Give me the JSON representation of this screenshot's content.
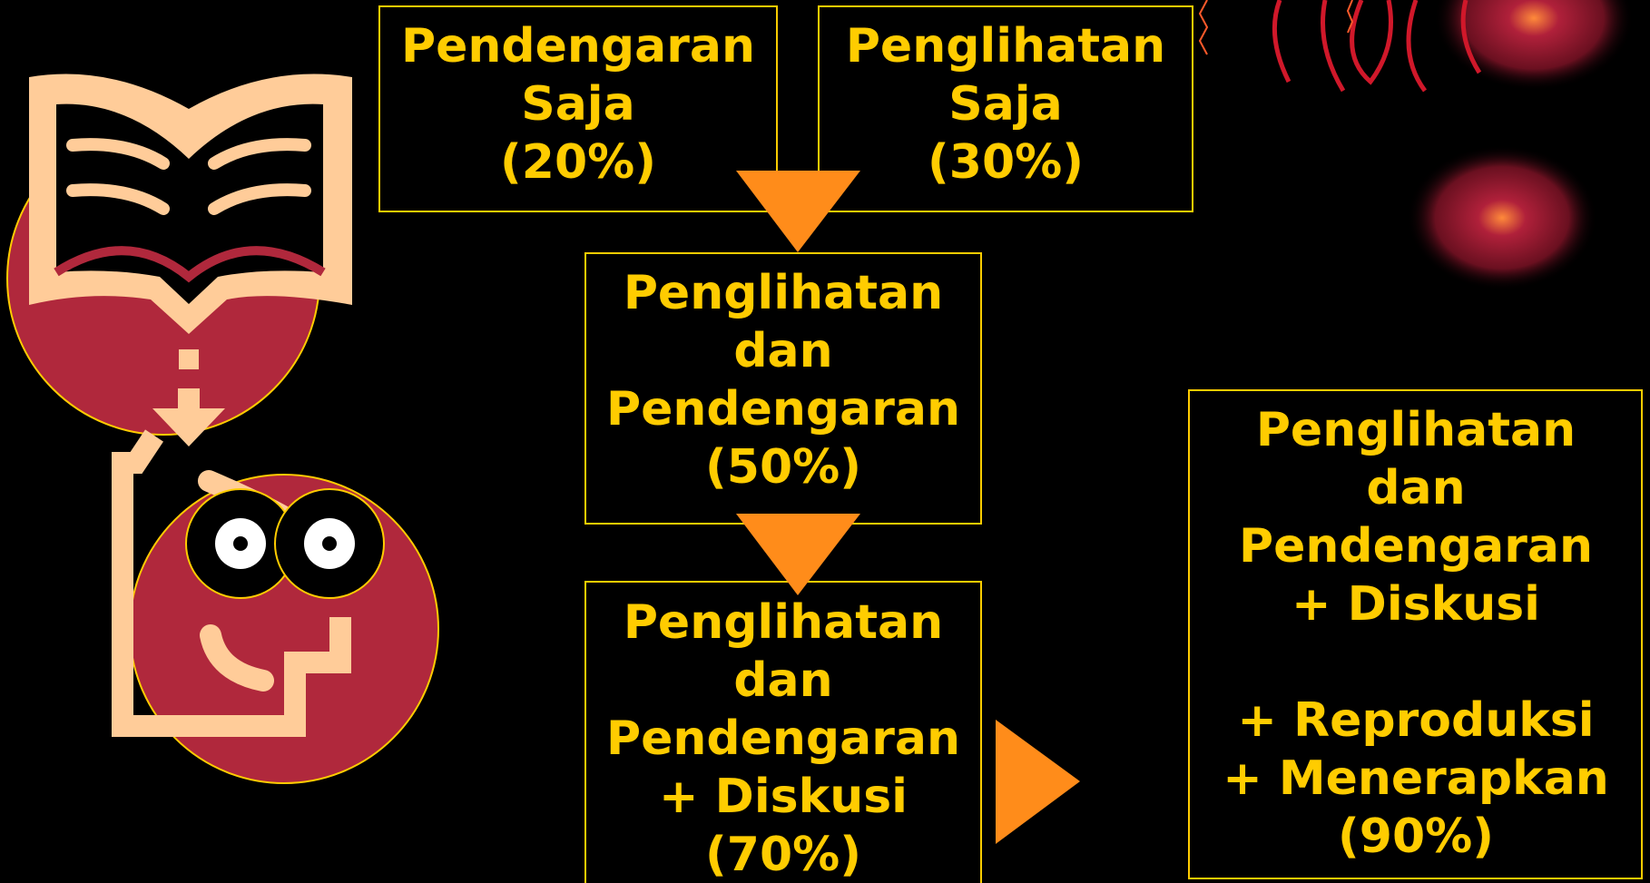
{
  "nodes": [
    {
      "lines": [
        "Pendengaran",
        "Saja",
        "(20%)"
      ]
    },
    {
      "lines": [
        "Penglihatan",
        "Saja",
        "(30%)"
      ]
    },
    {
      "lines": [
        "Penglihatan",
        "dan",
        "Pendengaran",
        "(50%)"
      ]
    },
    {
      "lines": [
        "Penglihatan",
        "dan",
        "Pendengaran",
        "+ Diskusi",
        "(70%)"
      ]
    },
    {
      "lines": [
        "Penglihatan",
        "dan",
        "Pendengaran",
        "+ Diskusi",
        "+ Reproduksi",
        "+ Menerapkan",
        "(90%)"
      ]
    }
  ]
}
